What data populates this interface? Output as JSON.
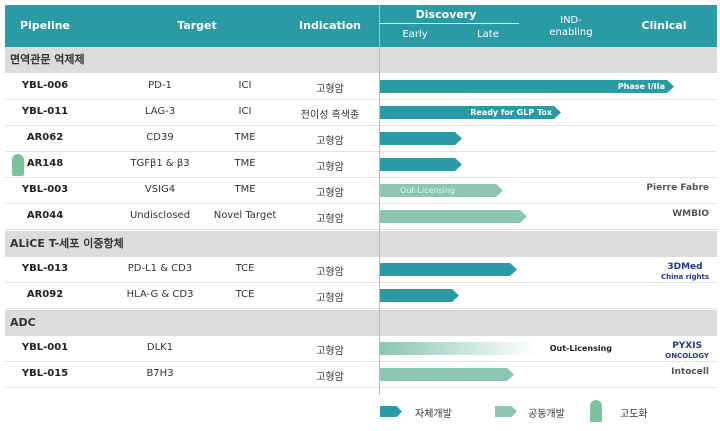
{
  "header": {
    "pipeline": "Pipeline",
    "target": "Target",
    "indication": "Indication",
    "discovery": "Discovery",
    "early": "Early",
    "late": "Late",
    "ind": "IND-",
    "ind2": "enabling",
    "clinical": "Clinical"
  },
  "colors": {
    "own": "#2a9aa5",
    "co": "#8cc5b0",
    "header": "#2a9aa5",
    "section": "#dcdcdc"
  },
  "sections": [
    {
      "title": "면역관문 억제제",
      "rows": [
        {
          "name": "YBL-006",
          "target": "PD-1",
          "type": "ICI",
          "indication": "고형암",
          "bar": "own",
          "progress_pct": 85,
          "label": "Phase I/IIa"
        },
        {
          "name": "YBL-011",
          "target": "LAG-3",
          "type": "ICI",
          "indication": "전이성 흑색종",
          "bar": "own",
          "progress_pct": 52,
          "label": "Ready for GLP Tox"
        },
        {
          "name": "AR062",
          "target": "CD39",
          "type": "TME",
          "indication": "고형암",
          "bar": "own",
          "progress_pct": 23
        },
        {
          "name": "AR148",
          "target": "TGFβ1 & β3",
          "type": "TME",
          "indication": "고형암",
          "bar": "own",
          "progress_pct": 23,
          "icon": "rocket-icon"
        },
        {
          "name": "YBL-003",
          "target": "VSIG4",
          "type": "TME",
          "indication": "고형암",
          "bar": "co",
          "progress_pct": 35,
          "label": "Out-Licensing",
          "partner": "Pierre Fabre"
        },
        {
          "name": "AR044",
          "target": "Undisclosed",
          "type": "Novel Target",
          "indication": "고형암",
          "bar": "co",
          "progress_pct": 42,
          "partner": "WMBIO"
        }
      ]
    },
    {
      "title": "ALiCE T-세포 이중항체",
      "rows": [
        {
          "name": "YBL-013",
          "target": "PD-L1 & CD3",
          "type": "TCE",
          "indication": "고형암",
          "bar": "own",
          "progress_pct": 39,
          "partner": "3DMed",
          "partner2": "China rights"
        },
        {
          "name": "AR092",
          "target": "HLA-G & CD3",
          "type": "TCE",
          "indication": "고형암",
          "bar": "own",
          "progress_pct": 22
        }
      ]
    },
    {
      "title": "ADC",
      "rows": [
        {
          "name": "YBL-001",
          "target": "DLK1",
          "type": "",
          "indication": "고형암",
          "bar": "grad",
          "progress_pct": 52,
          "label": "Out-Licensing",
          "partner": "PYXIS",
          "partner2": "ONCOLOGY"
        },
        {
          "name": "YBL-015",
          "target": "B7H3",
          "type": "",
          "indication": "고형암",
          "bar": "co",
          "progress_pct": 38,
          "partner": "Intocell"
        }
      ]
    }
  ],
  "legend": {
    "own": "자체개발",
    "co": "공동개발",
    "adv": "고도화"
  }
}
